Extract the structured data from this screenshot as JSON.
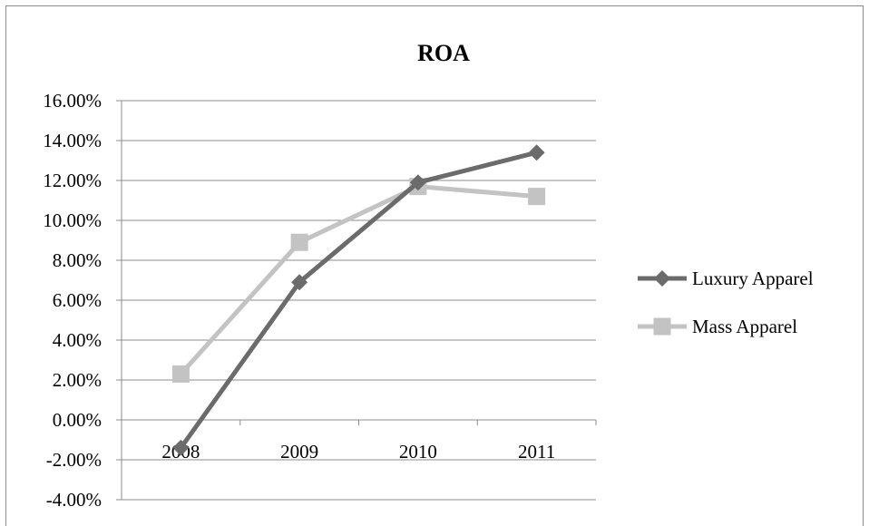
{
  "chart_data": {
    "type": "line",
    "title": "ROA",
    "xlabel": "",
    "ylabel": "",
    "categories": [
      "2008",
      "2009",
      "2010",
      "2011"
    ],
    "ylim": [
      -0.04,
      0.16
    ],
    "y_tick_values": [
      -0.04,
      -0.02,
      0.0,
      0.02,
      0.04,
      0.06,
      0.08,
      0.1,
      0.12,
      0.14,
      0.16
    ],
    "y_tick_labels": [
      "-4.00%",
      "-2.00%",
      "0.00%",
      "2.00%",
      "4.00%",
      "6.00%",
      "8.00%",
      "10.00%",
      "12.00%",
      "14.00%",
      "16.00%"
    ],
    "grid": true,
    "legend_position": "right",
    "series": [
      {
        "name": "Luxury Apparel",
        "values": [
          -0.014,
          0.069,
          0.119,
          0.134
        ],
        "color": "#6b6b6b",
        "marker": "diamond"
      },
      {
        "name": "Mass Apparel",
        "values": [
          0.023,
          0.089,
          0.117,
          0.112
        ],
        "color": "#c3c3c3",
        "marker": "square"
      }
    ]
  }
}
